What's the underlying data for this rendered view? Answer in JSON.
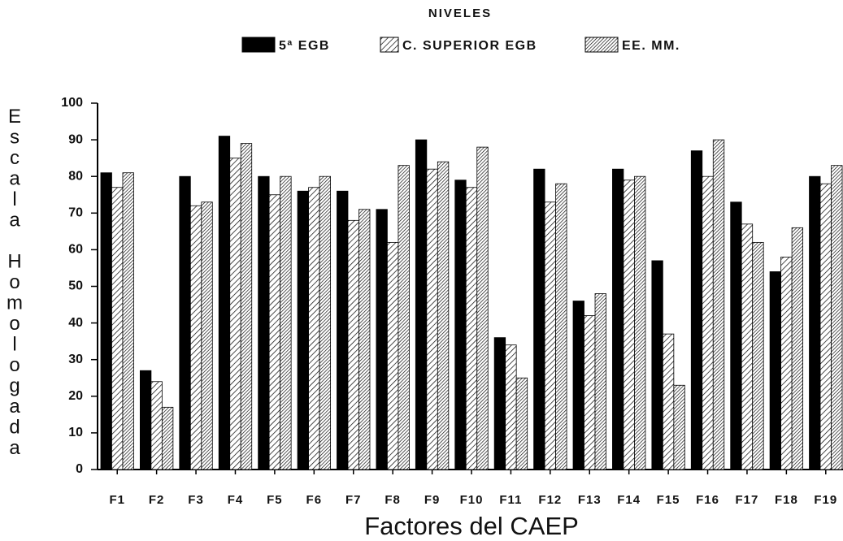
{
  "chart_data": {
    "type": "bar",
    "legend_title": "NIVELES",
    "x_label": "Factores del CAEP",
    "y_label": "Escala Homologada",
    "categories": [
      "F1",
      "F2",
      "F3",
      "F4",
      "F5",
      "F6",
      "F7",
      "F8",
      "F9",
      "F10",
      "F11",
      "F12",
      "F13",
      "F14",
      "F15",
      "F16",
      "F17",
      "F18",
      "F19"
    ],
    "series": [
      {
        "name": "5ª EGB",
        "color": "#000000",
        "hatch": "solid",
        "values": [
          81,
          27,
          80,
          91,
          80,
          76,
          76,
          71,
          90,
          79,
          36,
          82,
          46,
          82,
          57,
          87,
          73,
          54,
          80
        ]
      },
      {
        "name": "C. SUPERIOR EGB",
        "color": "#000000",
        "hatch": "diagonal",
        "values": [
          77,
          24,
          72,
          85,
          75,
          77,
          68,
          62,
          82,
          77,
          34,
          73,
          42,
          79,
          37,
          80,
          67,
          58,
          78
        ]
      },
      {
        "name": "EE. MM.",
        "color": "#000000",
        "hatch": "dense-diagonal",
        "values": [
          81,
          17,
          73,
          89,
          80,
          80,
          71,
          83,
          84,
          88,
          25,
          78,
          48,
          80,
          23,
          90,
          62,
          66,
          83
        ]
      }
    ],
    "ylim": [
      0,
      100
    ],
    "yticks": [
      0,
      10,
      20,
      30,
      40,
      50,
      60,
      70,
      80,
      90,
      100
    ],
    "legend_position": "top"
  }
}
